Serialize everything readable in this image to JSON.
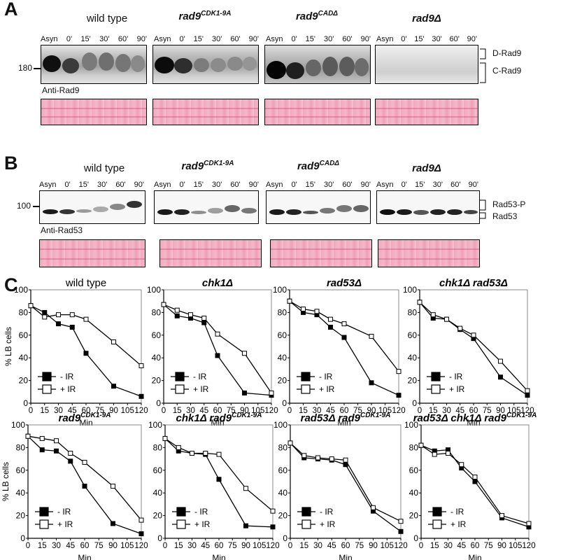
{
  "panels": {
    "a": "A",
    "b": "B",
    "c": "C"
  },
  "panel_a": {
    "strains": [
      {
        "base": "wild type",
        "sup": ""
      },
      {
        "base": "rad9",
        "sup": "CDK1-9A"
      },
      {
        "base": "rad9",
        "sup": "CADΔ"
      },
      {
        "base": "rad9Δ",
        "sup": ""
      }
    ],
    "lanes": [
      "Asyn",
      "0'",
      "15'",
      "30'",
      "60'",
      "90'"
    ],
    "mw": "180",
    "antibody": "Anti-Rad9",
    "band_labels": [
      "D-Rad9",
      "C-Rad9"
    ]
  },
  "panel_b": {
    "strains": [
      {
        "base": "wild type",
        "sup": ""
      },
      {
        "base": "rad9",
        "sup": "CDK1-9A"
      },
      {
        "base": "rad9",
        "sup": "CADΔ"
      },
      {
        "base": "rad9Δ",
        "sup": ""
      }
    ],
    "lanes": [
      "Asyn",
      "0'",
      "15'",
      "30'",
      "60'",
      "90'"
    ],
    "mw": "100",
    "antibody": "Anti-Rad53",
    "band_labels": [
      "Rad53-P",
      "Rad53"
    ]
  },
  "chart_data": [
    {
      "type": "line",
      "title": "wild type",
      "title_sup": "",
      "title_italic": false,
      "ylabel": "% LB cells",
      "xlabel": "Min",
      "x_ticks": [
        0,
        15,
        30,
        45,
        60,
        75,
        90,
        105,
        120
      ],
      "y_ticks": [
        0,
        20,
        40,
        60,
        80,
        100
      ],
      "ylim": [
        0,
        100
      ],
      "xlim": [
        0,
        120
      ],
      "legend": [
        "- IR",
        "+ IR"
      ],
      "series": [
        {
          "name": "- IR",
          "marker": "filled",
          "x": [
            0,
            15,
            30,
            45,
            60,
            90,
            120
          ],
          "y": [
            86,
            80,
            70,
            67,
            44,
            15,
            6
          ]
        },
        {
          "name": "+ IR",
          "marker": "open",
          "x": [
            0,
            15,
            30,
            45,
            60,
            90,
            120
          ],
          "y": [
            86,
            76,
            78,
            78,
            74,
            54,
            33
          ]
        }
      ]
    },
    {
      "type": "line",
      "title": "chk1Δ",
      "title_sup": "",
      "title_italic": true,
      "ylabel": "",
      "xlabel": "Min",
      "x_ticks": [
        0,
        15,
        30,
        45,
        60,
        75,
        90,
        105,
        120
      ],
      "y_ticks": [
        0,
        20,
        40,
        60,
        80,
        100
      ],
      "ylim": [
        0,
        100
      ],
      "xlim": [
        0,
        120
      ],
      "legend": [
        "- IR",
        "+ IR"
      ],
      "series": [
        {
          "name": "- IR",
          "marker": "filled",
          "x": [
            0,
            15,
            30,
            45,
            60,
            90,
            120
          ],
          "y": [
            87,
            77,
            75,
            71,
            42,
            9,
            7
          ]
        },
        {
          "name": "+ IR",
          "marker": "open",
          "x": [
            0,
            15,
            30,
            45,
            60,
            90,
            120
          ],
          "y": [
            87,
            82,
            78,
            75,
            61,
            44,
            9
          ]
        }
      ]
    },
    {
      "type": "line",
      "title": "rad53Δ",
      "title_sup": "",
      "title_italic": true,
      "ylabel": "",
      "xlabel": "Min",
      "x_ticks": [
        0,
        15,
        30,
        45,
        60,
        75,
        90,
        105,
        120
      ],
      "y_ticks": [
        0,
        20,
        40,
        60,
        80,
        100
      ],
      "ylim": [
        0,
        100
      ],
      "xlim": [
        0,
        120
      ],
      "legend": [
        "- IR",
        "+ IR"
      ],
      "series": [
        {
          "name": "- IR",
          "marker": "filled",
          "x": [
            0,
            15,
            30,
            45,
            60,
            90,
            120
          ],
          "y": [
            90,
            80,
            78,
            67,
            58,
            18,
            7
          ]
        },
        {
          "name": "+ IR",
          "marker": "open",
          "x": [
            0,
            15,
            30,
            45,
            60,
            90,
            120
          ],
          "y": [
            90,
            83,
            81,
            74,
            70,
            59,
            28
          ]
        }
      ]
    },
    {
      "type": "line",
      "title": "chk1Δ rad53Δ",
      "title_sup": "",
      "title_italic": true,
      "ylabel": "",
      "xlabel": "Min",
      "x_ticks": [
        0,
        15,
        30,
        45,
        60,
        75,
        90,
        105,
        120
      ],
      "y_ticks": [
        0,
        20,
        40,
        60,
        80,
        100
      ],
      "ylim": [
        0,
        100
      ],
      "xlim": [
        0,
        120
      ],
      "legend": [
        "- IR",
        "+ IR"
      ],
      "series": [
        {
          "name": "- IR",
          "marker": "filled",
          "x": [
            0,
            15,
            30,
            45,
            60,
            90,
            120
          ],
          "y": [
            89,
            75,
            74,
            65,
            57,
            23,
            7
          ]
        },
        {
          "name": "+ IR",
          "marker": "open",
          "x": [
            0,
            15,
            30,
            45,
            60,
            90,
            120
          ],
          "y": [
            89,
            78,
            74,
            66,
            60,
            37,
            11
          ]
        }
      ]
    },
    {
      "type": "line",
      "title": "rad9",
      "title_sup": "CDK1-9A",
      "title_italic": true,
      "ylabel": "% LB cells",
      "xlabel": "Min",
      "x_ticks": [
        0,
        15,
        30,
        45,
        60,
        75,
        90,
        105,
        120
      ],
      "y_ticks": [
        0,
        20,
        40,
        60,
        80,
        100
      ],
      "ylim": [
        0,
        100
      ],
      "xlim": [
        0,
        120
      ],
      "legend": [
        "- IR",
        "+ IR"
      ],
      "series": [
        {
          "name": "- IR",
          "marker": "filled",
          "x": [
            0,
            15,
            30,
            45,
            60,
            90,
            120
          ],
          "y": [
            90,
            78,
            77,
            68,
            46,
            13,
            4
          ]
        },
        {
          "name": "+ IR",
          "marker": "open",
          "x": [
            0,
            15,
            30,
            45,
            60,
            90,
            120
          ],
          "y": [
            90,
            88,
            86,
            75,
            67,
            46,
            16
          ]
        }
      ]
    },
    {
      "type": "line",
      "title": "chk1Δ rad9",
      "title_sup": "CDK1-9A",
      "title_italic": true,
      "ylabel": "",
      "xlabel": "Min",
      "x_ticks": [
        0,
        15,
        30,
        45,
        60,
        75,
        90,
        105,
        120
      ],
      "y_ticks": [
        0,
        20,
        40,
        60,
        80,
        100
      ],
      "ylim": [
        0,
        100
      ],
      "xlim": [
        0,
        120
      ],
      "legend": [
        "- IR",
        "+ IR"
      ],
      "series": [
        {
          "name": "- IR",
          "marker": "filled",
          "x": [
            0,
            15,
            30,
            45,
            60,
            90,
            120
          ],
          "y": [
            88,
            77,
            75,
            74,
            52,
            11,
            10
          ]
        },
        {
          "name": "+ IR",
          "marker": "open",
          "x": [
            0,
            15,
            30,
            45,
            60,
            90,
            120
          ],
          "y": [
            88,
            80,
            75,
            75,
            74,
            44,
            24
          ]
        }
      ]
    },
    {
      "type": "line",
      "title": "rad53Δ rad9",
      "title_sup": "CDK1-9A",
      "title_italic": true,
      "ylabel": "",
      "xlabel": "Min",
      "x_ticks": [
        0,
        15,
        30,
        45,
        60,
        75,
        90,
        105,
        120
      ],
      "y_ticks": [
        0,
        20,
        40,
        60,
        80,
        100
      ],
      "ylim": [
        0,
        100
      ],
      "xlim": [
        0,
        120
      ],
      "legend": [
        "- IR",
        "+ IR"
      ],
      "series": [
        {
          "name": "- IR",
          "marker": "filled",
          "x": [
            0,
            15,
            30,
            45,
            60,
            90,
            120
          ],
          "y": [
            84,
            71,
            70,
            69,
            65,
            24,
            6
          ]
        },
        {
          "name": "+ IR",
          "marker": "open",
          "x": [
            0,
            15,
            30,
            45,
            60,
            90,
            120
          ],
          "y": [
            84,
            73,
            71,
            70,
            69,
            27,
            15
          ]
        }
      ]
    },
    {
      "type": "line",
      "title": "rad53Δ chk1Δ rad9",
      "title_sup": "CDK1-9A",
      "title_italic": true,
      "ylabel": "",
      "xlabel": "Min",
      "x_ticks": [
        0,
        15,
        30,
        45,
        60,
        75,
        90,
        105,
        120
      ],
      "y_ticks": [
        0,
        20,
        40,
        60,
        80,
        100
      ],
      "ylim": [
        0,
        100
      ],
      "xlim": [
        0,
        120
      ],
      "legend": [
        "- IR",
        "+ IR"
      ],
      "series": [
        {
          "name": "- IR",
          "marker": "filled",
          "x": [
            0,
            15,
            30,
            45,
            60,
            90,
            120
          ],
          "y": [
            82,
            77,
            78,
            62,
            50,
            18,
            10
          ]
        },
        {
          "name": "+ IR",
          "marker": "open",
          "x": [
            0,
            15,
            30,
            45,
            60,
            90,
            120
          ],
          "y": [
            82,
            74,
            75,
            65,
            54,
            20,
            13
          ]
        }
      ]
    }
  ]
}
